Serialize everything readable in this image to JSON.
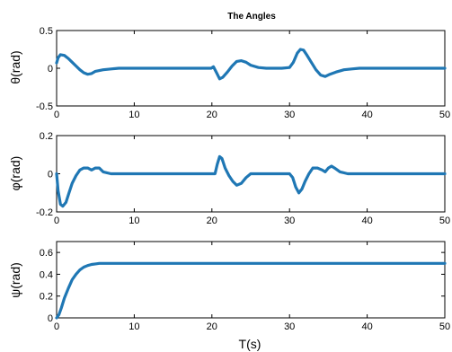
{
  "figure": {
    "title": "The Angles",
    "xlabel": "T(s)",
    "line_color": "#1f77b4"
  },
  "chart_data": [
    {
      "type": "line",
      "ylabel": "θ(rad)",
      "xlim": [
        0,
        50
      ],
      "ylim": [
        -0.5,
        0.5
      ],
      "xticks": [
        "0",
        "10",
        "20",
        "30",
        "40",
        "50"
      ],
      "yticks": [
        "-0.5",
        "0",
        "0.5"
      ],
      "series": [
        {
          "x": [
            0,
            0.2,
            0.5,
            1,
            1.5,
            2,
            2.5,
            3,
            3.5,
            4,
            4.5,
            5,
            6,
            7,
            8,
            10,
            15,
            19.9,
            20.2,
            20.6,
            21,
            21.4,
            22,
            22.6,
            23.2,
            23.8,
            24.4,
            25,
            26,
            27,
            28,
            29,
            30,
            30.5,
            31,
            31.4,
            31.8,
            32.2,
            32.8,
            33.4,
            34,
            34.6,
            35.2,
            36,
            37,
            38,
            39,
            40,
            45,
            50
          ],
          "y": [
            0.07,
            0.14,
            0.18,
            0.17,
            0.13,
            0.08,
            0.03,
            -0.02,
            -0.06,
            -0.08,
            -0.07,
            -0.04,
            -0.02,
            -0.01,
            0,
            0,
            0,
            0,
            0.02,
            -0.06,
            -0.14,
            -0.12,
            -0.05,
            0.03,
            0.09,
            0.1,
            0.08,
            0.04,
            0.01,
            0,
            0,
            0,
            0.01,
            0.08,
            0.2,
            0.25,
            0.24,
            0.18,
            0.08,
            -0.02,
            -0.09,
            -0.11,
            -0.08,
            -0.05,
            -0.02,
            -0.01,
            0,
            0,
            0,
            0
          ]
        }
      ]
    },
    {
      "type": "line",
      "ylabel": "φ(rad)",
      "xlim": [
        0,
        50
      ],
      "ylim": [
        -0.2,
        0.2
      ],
      "xticks": [
        "0",
        "10",
        "20",
        "30",
        "40",
        "50"
      ],
      "yticks": [
        "-0.2",
        "0",
        "0.2"
      ],
      "series": [
        {
          "x": [
            0,
            0.2,
            0.5,
            0.8,
            1.2,
            1.6,
            2,
            2.5,
            3,
            3.5,
            4,
            4.5,
            5,
            5.5,
            6,
            7,
            8,
            10,
            15,
            20,
            20.4,
            20.7,
            21,
            21.3,
            21.7,
            22.2,
            22.7,
            23.2,
            23.8,
            24.4,
            25,
            26,
            28,
            30,
            30.4,
            30.8,
            31.2,
            31.6,
            32,
            32.5,
            33,
            33.6,
            34.2,
            34.6,
            35,
            35.4,
            35.8,
            36.5,
            37.5,
            40,
            45,
            50
          ],
          "y": [
            0,
            -0.09,
            -0.16,
            -0.17,
            -0.15,
            -0.1,
            -0.05,
            -0.01,
            0.02,
            0.03,
            0.03,
            0.02,
            0.03,
            0.03,
            0.01,
            0,
            0,
            0,
            0,
            0,
            0,
            0.05,
            0.09,
            0.08,
            0.03,
            -0.01,
            -0.04,
            -0.06,
            -0.05,
            -0.02,
            0,
            0,
            0,
            0,
            -0.02,
            -0.07,
            -0.1,
            -0.08,
            -0.04,
            0,
            0.03,
            0.03,
            0.02,
            0.01,
            0.03,
            0.04,
            0.03,
            0.01,
            0,
            0,
            0,
            0
          ]
        }
      ]
    },
    {
      "type": "line",
      "ylabel": "ψ(rad)",
      "xlim": [
        0,
        50
      ],
      "ylim": [
        0,
        0.7
      ],
      "xticks": [
        "0",
        "10",
        "20",
        "30",
        "40",
        "50"
      ],
      "yticks": [
        "0",
        "0.2",
        "0.4",
        "0.6"
      ],
      "series": [
        {
          "x": [
            0,
            0.3,
            0.6,
            1,
            1.5,
            2,
            2.5,
            3,
            3.5,
            4,
            4.5,
            5,
            5.5,
            6,
            7,
            10,
            20,
            30,
            40,
            50
          ],
          "y": [
            0,
            0.03,
            0.09,
            0.18,
            0.27,
            0.35,
            0.4,
            0.44,
            0.465,
            0.48,
            0.49,
            0.495,
            0.5,
            0.5,
            0.5,
            0.5,
            0.5,
            0.5,
            0.5,
            0.5
          ]
        }
      ]
    }
  ]
}
